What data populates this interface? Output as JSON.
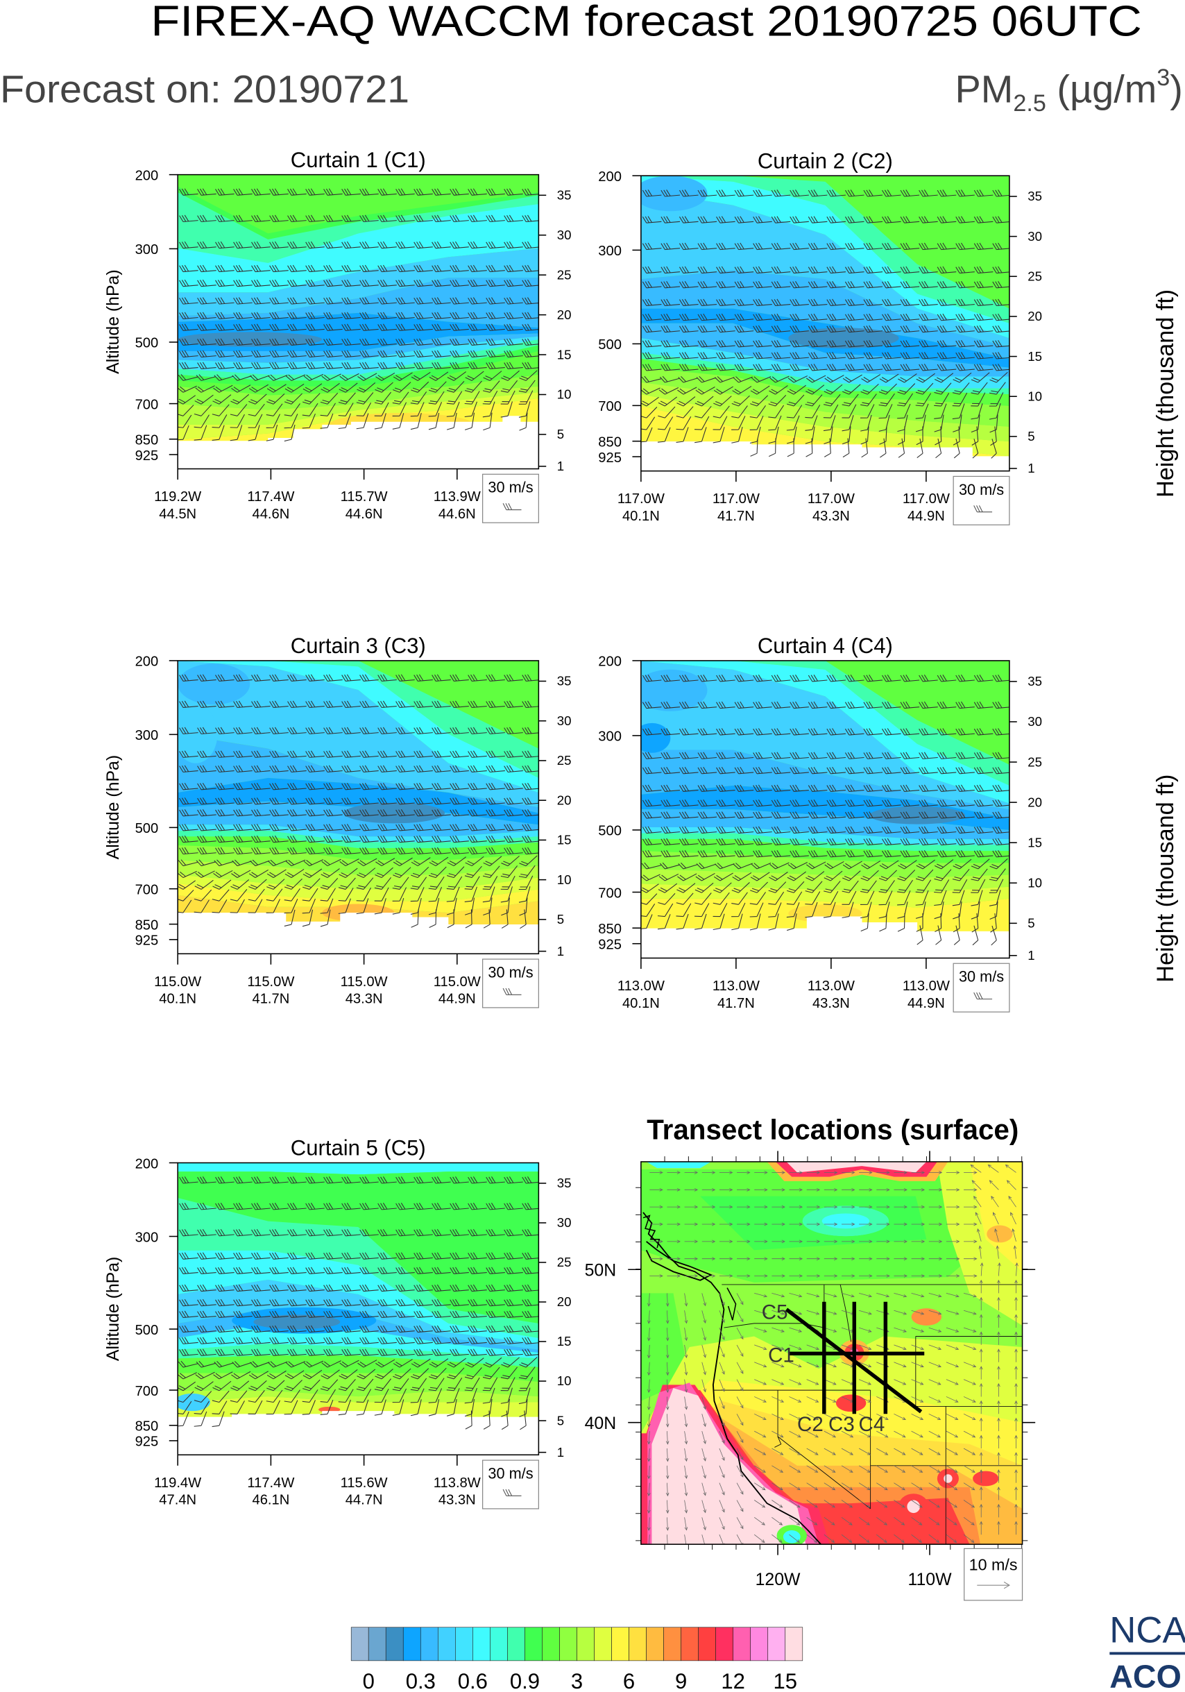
{
  "header": {
    "title": "FIREX-AQ WACCM forecast 20190725 06UTC",
    "forecast_on": "Forecast on: 20190721",
    "units": {
      "base": "PM",
      "sub": "2.5",
      "unit": " (µg/m",
      "sup": "3",
      "close": ")"
    }
  },
  "axes": {
    "left_label": "Altitude (hPa)",
    "right_label": "Height (thousand ft)",
    "pressure_ticks": [
      "200",
      "300",
      "500",
      "700",
      "850",
      "925"
    ],
    "height_ticks": [
      "35",
      "30",
      "25",
      "20",
      "15",
      "10",
      "5",
      "1"
    ],
    "wind_legend": "30 m/s"
  },
  "chart_data": [
    {
      "type": "heatmap",
      "title": "Curtain 1 (C1)",
      "ylabel": "Altitude (hPa)",
      "y2label": "Height (thousand ft)",
      "xticks": [
        [
          "119.2W",
          "44.5N"
        ],
        [
          "117.4W",
          "44.6N"
        ],
        [
          "115.7W",
          "44.6N"
        ],
        [
          "113.9W",
          "44.6N"
        ]
      ]
    },
    {
      "type": "heatmap",
      "title": "Curtain 2 (C2)",
      "y2label": "Height (thousand ft)",
      "xticks": [
        [
          "117.0W",
          "40.1N"
        ],
        [
          "117.0W",
          "41.7N"
        ],
        [
          "117.0W",
          "43.3N"
        ],
        [
          "117.0W",
          "44.9N"
        ]
      ]
    },
    {
      "type": "heatmap",
      "title": "Curtain 3 (C3)",
      "ylabel": "Altitude (hPa)",
      "xticks": [
        [
          "115.0W",
          "40.1N"
        ],
        [
          "115.0W",
          "41.7N"
        ],
        [
          "115.0W",
          "43.3N"
        ],
        [
          "115.0W",
          "44.9N"
        ]
      ]
    },
    {
      "type": "heatmap",
      "title": "Curtain 4 (C4)",
      "xticks": [
        [
          "113.0W",
          "40.1N"
        ],
        [
          "113.0W",
          "41.7N"
        ],
        [
          "113.0W",
          "43.3N"
        ],
        [
          "113.0W",
          "44.9N"
        ]
      ]
    },
    {
      "type": "heatmap",
      "title": "Curtain 5 (C5)",
      "ylabel": "Altitude (hPa)",
      "xticks": [
        [
          "119.4W",
          "47.4N"
        ],
        [
          "117.4W",
          "46.1N"
        ],
        [
          "115.6W",
          "44.7N"
        ],
        [
          "113.8W",
          "43.3N"
        ]
      ]
    }
  ],
  "map": {
    "title": "Transect locations (surface)",
    "lat_labels": [
      "50N",
      "40N"
    ],
    "lon_labels": [
      "120W",
      "110W"
    ],
    "transects": {
      "c1": "C1",
      "c2": "C2",
      "c3": "C3",
      "c4": "C4",
      "c5": "C5"
    },
    "wind_legend": "10 m/s"
  },
  "colorbar": {
    "colors": [
      "#98b8d8",
      "#6aa6d0",
      "#3b8fc3",
      "#0ea5ff",
      "#38bbff",
      "#41d1ff",
      "#41e4ff",
      "#40fbff",
      "#40ffe0",
      "#40ffae",
      "#40ff50",
      "#60ff40",
      "#90ff40",
      "#b7ff40",
      "#e0ff40",
      "#fff640",
      "#ffe040",
      "#ffbb40",
      "#ff9040",
      "#ff6440",
      "#ff4040",
      "#ff3060",
      "#ff60b0",
      "#ff88e0",
      "#ffb0f0",
      "#ffdde2"
    ],
    "labels": [
      "0",
      "0.3",
      "0.6",
      "0.9",
      "3",
      "6",
      "9",
      "12",
      "15"
    ]
  },
  "logo": {
    "line1": "NCA",
    "line2": "ACO",
    "color": "#1b3a6b"
  }
}
